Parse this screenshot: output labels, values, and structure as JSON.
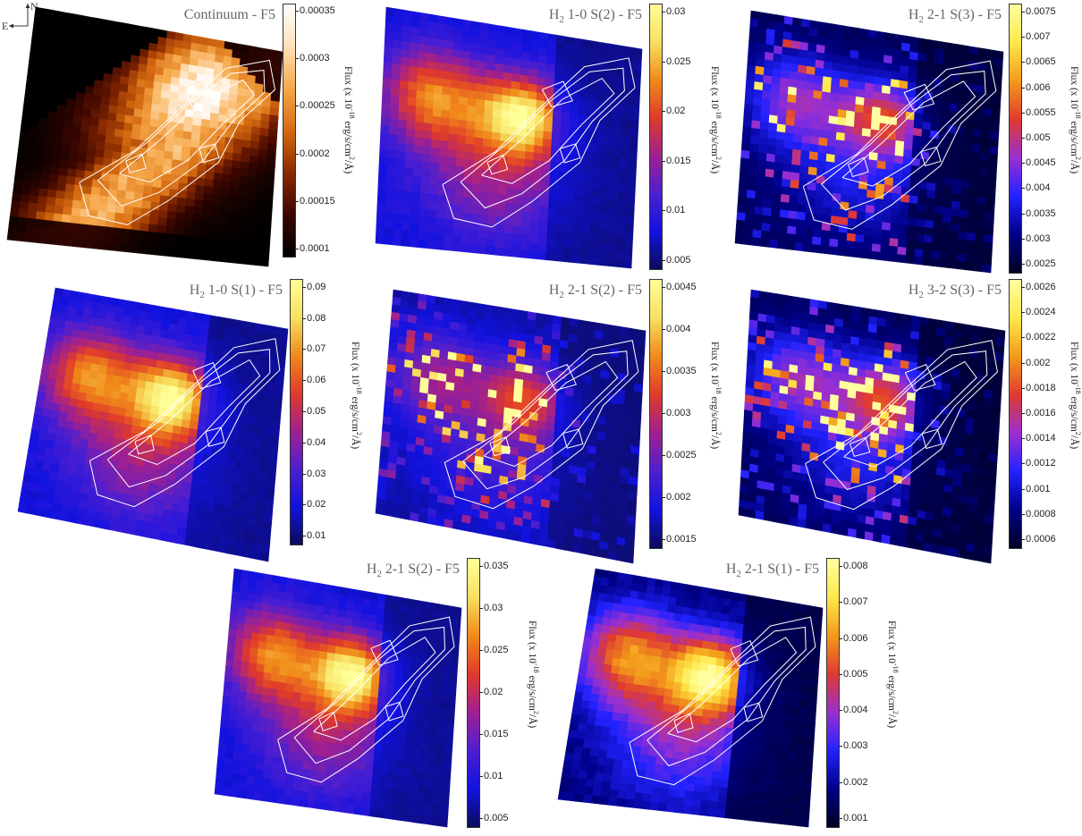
{
  "compass": {
    "north": "N",
    "east": "E"
  },
  "panels": [
    {
      "title": "Continuum - F5",
      "title_is_h2": false,
      "cmap": "afmhot",
      "style": "cont",
      "ticks": [
        "0.00035",
        "0.0003",
        "0.00025",
        "0.0002",
        "0.00015",
        "0.0001"
      ],
      "flux_label": {
        "pre": "Flux (x 10",
        "exp": "-18",
        "post": " erg/s/cm",
        "unit_exp": "2",
        "unit": "/Å)"
      }
    },
    {
      "title": "1-0 S(2) - F5",
      "title_is_h2": true,
      "cmap": "plasma_h",
      "style": "smooth",
      "ticks": [
        "0.03",
        "0.025",
        "0.02",
        "0.015",
        "0.01",
        "0.005"
      ],
      "flux_label": {
        "pre": "Flux (x 10",
        "exp": "-18",
        "post": " erg/s/cm",
        "unit_exp": "2",
        "unit": "/Å)"
      }
    },
    {
      "title": "2-1 S(3) - F5",
      "title_is_h2": true,
      "cmap": "gnuplot",
      "style": "noisy",
      "ticks": [
        "0.0075",
        "0.007",
        "0.0065",
        "0.006",
        "0.0055",
        "0.005",
        "0.0045",
        "0.004",
        "0.0035",
        "0.003",
        "0.0025"
      ],
      "flux_label": {
        "pre": "Flux (x 10",
        "exp": "-18",
        "post": " erg/s/cm",
        "unit_exp": "2",
        "unit": "/Å)"
      }
    },
    {
      "title": "1-0 S(1) - F5",
      "title_is_h2": true,
      "cmap": "plasma_h",
      "style": "smooth",
      "ticks": [
        "0.09",
        "0.08",
        "0.07",
        "0.06",
        "0.05",
        "0.04",
        "0.03",
        "0.02",
        "0.01"
      ],
      "flux_label": {
        "pre": "Flux (x 10",
        "exp": "-18",
        "post": " erg/s/cm",
        "unit_exp": "2",
        "unit": "/Å)"
      }
    },
    {
      "title": "2-1 S(2) - F5",
      "title_is_h2": true,
      "cmap": "plasma_h",
      "style": "noisy",
      "ticks": [
        "0.0045",
        "0.004",
        "0.0035",
        "0.003",
        "0.0025",
        "0.002",
        "0.0015"
      ],
      "flux_label": {
        "pre": "Flux (x 10",
        "exp": "-18",
        "post": " erg/s/cm",
        "unit_exp": "2",
        "unit": "/Å)"
      }
    },
    {
      "title": "3-2 S(3) - F5",
      "title_is_h2": true,
      "cmap": "gnuplot",
      "style": "noisy",
      "ticks": [
        "0.0026",
        "0.0024",
        "0.0022",
        "0.002",
        "0.0018",
        "0.0016",
        "0.0014",
        "0.0012",
        "0.001",
        "0.0008",
        "0.0006"
      ],
      "flux_label": {
        "pre": "Flux (x 10",
        "exp": "-18",
        "post": " erg/s/cm",
        "unit_exp": "2",
        "unit": "/Å)"
      }
    },
    {
      "title": "2-1 S(2) - F5",
      "title_is_h2": true,
      "cmap": "plasma_h",
      "style": "smooth",
      "ticks": [
        "0.035",
        "0.03",
        "0.025",
        "0.02",
        "0.015",
        "0.01",
        "0.005"
      ],
      "flux_label": {
        "pre": "Flux (x 10",
        "exp": "-18",
        "post": " erg/s/cm",
        "unit_exp": "2",
        "unit": "/Å)"
      }
    },
    {
      "title": "2-1 S(1) - F5",
      "title_is_h2": true,
      "cmap": "gnuplot",
      "style": "smooth",
      "ticks": [
        "0.008",
        "0.007",
        "0.006",
        "0.005",
        "0.004",
        "0.003",
        "0.002",
        "0.001"
      ],
      "flux_label": {
        "pre": "Flux (x 10",
        "exp": "-18",
        "post": " erg/s/cm",
        "unit_exp": "2",
        "unit": "/Å)"
      }
    }
  ],
  "h2_prefix": "H",
  "h2_sub": "2"
}
